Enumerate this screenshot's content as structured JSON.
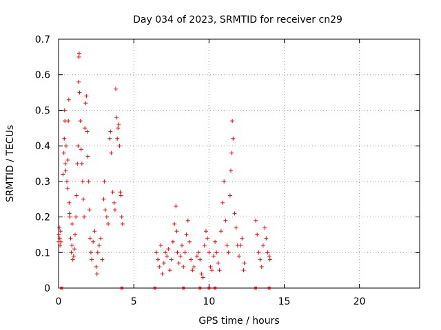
{
  "chart_data": {
    "type": "scatter",
    "title": "Day 034 of 2023, SRMTID for receiver cn29",
    "xlabel": "GPS time / hours",
    "ylabel": "SRMTID / TECUs",
    "xlim": [
      0,
      24
    ],
    "ylim": [
      0,
      0.7
    ],
    "xticks": [
      "0",
      "5",
      "10",
      "15",
      "20"
    ],
    "yticks": [
      "0",
      "0.1",
      "0.2",
      "0.3",
      "0.4",
      "0.5",
      "0.6",
      "0.7"
    ],
    "grid": true,
    "marker": "+",
    "color": "#ff0000",
    "series": [
      {
        "points": [
          [
            0.0,
            0.13
          ],
          [
            0.02,
            0.15
          ],
          [
            0.05,
            0.17
          ],
          [
            0.08,
            0.14
          ],
          [
            0.1,
            0.12
          ],
          [
            0.13,
            0.16
          ],
          [
            0.15,
            0.13
          ],
          [
            0.3,
            0.32
          ],
          [
            0.35,
            0.38
          ],
          [
            0.38,
            0.42
          ],
          [
            0.4,
            0.5
          ],
          [
            0.42,
            0.47
          ],
          [
            0.45,
            0.35
          ],
          [
            0.48,
            0.33
          ],
          [
            0.5,
            0.4
          ],
          [
            0.55,
            0.3
          ],
          [
            0.6,
            0.28
          ],
          [
            0.62,
            0.36
          ],
          [
            0.65,
            0.47
          ],
          [
            0.68,
            0.53
          ],
          [
            0.7,
            0.24
          ],
          [
            0.72,
            0.21
          ],
          [
            0.75,
            0.2
          ],
          [
            0.8,
            0.14
          ],
          [
            0.85,
            0.1
          ],
          [
            0.88,
            0.12
          ],
          [
            0.9,
            0.18
          ],
          [
            0.95,
            0.08
          ],
          [
            1.0,
            0.09
          ],
          [
            1.05,
            0.11
          ],
          [
            1.1,
            0.15
          ],
          [
            1.15,
            0.2
          ],
          [
            1.2,
            0.26
          ],
          [
            1.25,
            0.35
          ],
          [
            1.3,
            0.4
          ],
          [
            1.33,
            0.58
          ],
          [
            1.35,
            0.65
          ],
          [
            1.37,
            0.66
          ],
          [
            1.4,
            0.55
          ],
          [
            1.45,
            0.47
          ],
          [
            1.5,
            0.39
          ],
          [
            1.55,
            0.35
          ],
          [
            1.6,
            0.3
          ],
          [
            1.65,
            0.25
          ],
          [
            1.7,
            0.2
          ],
          [
            1.75,
            0.45
          ],
          [
            1.8,
            0.52
          ],
          [
            1.85,
            0.54
          ],
          [
            1.9,
            0.44
          ],
          [
            1.95,
            0.37
          ],
          [
            2.0,
            0.3
          ],
          [
            2.05,
            0.22
          ],
          [
            2.1,
            0.14
          ],
          [
            2.15,
            0.1
          ],
          [
            2.2,
            0.08
          ],
          [
            2.3,
            0.13
          ],
          [
            2.4,
            0.16
          ],
          [
            2.5,
            0.06
          ],
          [
            2.55,
            0.04
          ],
          [
            2.6,
            0.1
          ],
          [
            2.7,
            0.12
          ],
          [
            2.8,
            0.14
          ],
          [
            2.9,
            0.08
          ],
          [
            3.0,
            0.25
          ],
          [
            3.05,
            0.3
          ],
          [
            3.1,
            0.22
          ],
          [
            3.2,
            0.2
          ],
          [
            3.3,
            0.18
          ],
          [
            3.4,
            0.42
          ],
          [
            3.45,
            0.44
          ],
          [
            3.5,
            0.38
          ],
          [
            3.6,
            0.27
          ],
          [
            3.7,
            0.24
          ],
          [
            3.75,
            0.22
          ],
          [
            3.8,
            0.56
          ],
          [
            3.85,
            0.48
          ],
          [
            3.9,
            0.42
          ],
          [
            3.95,
            0.45
          ],
          [
            4.0,
            0.46
          ],
          [
            4.05,
            0.4
          ],
          [
            4.1,
            0.27
          ],
          [
            4.15,
            0.26
          ],
          [
            4.2,
            0.2
          ],
          [
            4.25,
            0.18
          ],
          [
            6.5,
            0.1
          ],
          [
            6.6,
            0.08
          ],
          [
            6.7,
            0.06
          ],
          [
            6.8,
            0.12
          ],
          [
            6.9,
            0.04
          ],
          [
            7.0,
            0.07
          ],
          [
            7.1,
            0.1
          ],
          [
            7.2,
            0.09
          ],
          [
            7.3,
            0.11
          ],
          [
            7.4,
            0.05
          ],
          [
            7.5,
            0.08
          ],
          [
            7.6,
            0.13
          ],
          [
            7.7,
            0.18
          ],
          [
            7.8,
            0.23
          ],
          [
            7.85,
            0.16
          ],
          [
            7.9,
            0.1
          ],
          [
            8.0,
            0.07
          ],
          [
            8.1,
            0.09
          ],
          [
            8.2,
            0.12
          ],
          [
            8.3,
            0.06
          ],
          [
            8.4,
            0.1
          ],
          [
            8.5,
            0.15
          ],
          [
            8.6,
            0.19
          ],
          [
            8.7,
            0.13
          ],
          [
            8.8,
            0.08
          ],
          [
            8.9,
            0.05
          ],
          [
            9.0,
            0.06
          ],
          [
            9.2,
            0.09
          ],
          [
            9.3,
            0.1
          ],
          [
            9.4,
            0.08
          ],
          [
            9.5,
            0.04
          ],
          [
            9.6,
            0.03
          ],
          [
            9.7,
            0.12
          ],
          [
            9.8,
            0.16
          ],
          [
            9.9,
            0.14
          ],
          [
            10.0,
            0.1
          ],
          [
            10.1,
            0.06
          ],
          [
            10.2,
            0.05
          ],
          [
            10.3,
            0.09
          ],
          [
            10.4,
            0.13
          ],
          [
            10.5,
            0.1
          ],
          [
            10.6,
            0.07
          ],
          [
            10.7,
            0.05
          ],
          [
            10.8,
            0.16
          ],
          [
            10.9,
            0.24
          ],
          [
            11.0,
            0.3
          ],
          [
            11.1,
            0.19
          ],
          [
            11.2,
            0.12
          ],
          [
            11.3,
            0.1
          ],
          [
            11.4,
            0.26
          ],
          [
            11.45,
            0.33
          ],
          [
            11.5,
            0.38
          ],
          [
            11.55,
            0.47
          ],
          [
            11.6,
            0.42
          ],
          [
            11.7,
            0.21
          ],
          [
            11.8,
            0.17
          ],
          [
            11.9,
            0.12
          ],
          [
            12.0,
            0.09
          ],
          [
            12.1,
            0.12
          ],
          [
            12.2,
            0.14
          ],
          [
            12.3,
            0.05
          ],
          [
            12.35,
            0.07
          ],
          [
            13.1,
            0.19
          ],
          [
            13.2,
            0.15
          ],
          [
            13.3,
            0.1
          ],
          [
            13.4,
            0.08
          ],
          [
            13.5,
            0.06
          ],
          [
            13.6,
            0.12
          ],
          [
            13.7,
            0.17
          ],
          [
            13.8,
            0.14
          ],
          [
            13.9,
            0.1
          ],
          [
            14.0,
            0.09
          ],
          [
            14.05,
            0.08
          ]
        ]
      }
    ],
    "zero_markers": [
      0.2,
      4.2,
      6.4,
      8.3,
      9.4,
      10.0,
      10.4,
      13.1,
      14.0
    ]
  }
}
